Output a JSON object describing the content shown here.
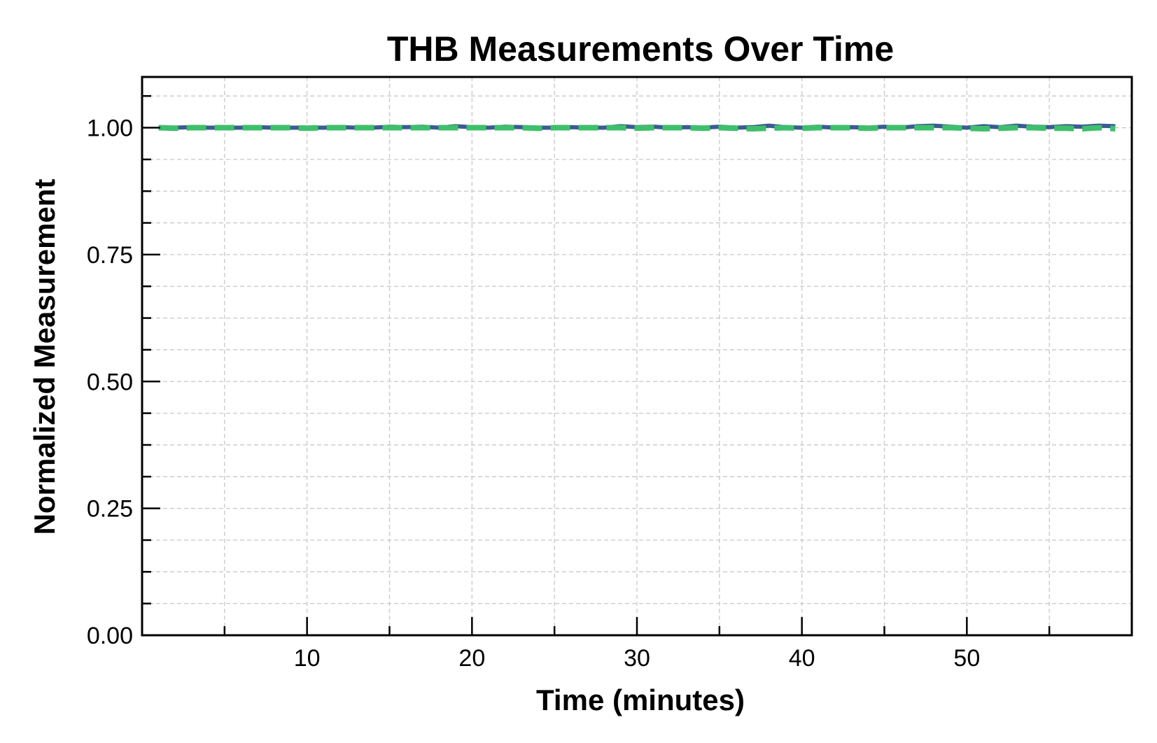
{
  "chart_data": {
    "type": "line",
    "title": "THB Measurements Over Time",
    "xlabel": "Time (minutes)",
    "ylabel": "Normalized Measurement",
    "xlim": [
      0,
      60
    ],
    "ylim": [
      0,
      1.1
    ],
    "x_ticks": [
      10,
      20,
      30,
      40,
      50
    ],
    "x_tick_labels": [
      "10",
      "20",
      "30",
      "40",
      "50"
    ],
    "y_ticks": [
      0,
      0.25,
      0.5,
      0.75,
      1.0
    ],
    "y_tick_labels": [
      "0.00",
      "0.25",
      "0.50",
      "0.75",
      "1.00"
    ],
    "x_minor_step": 5,
    "y_minor_step": 0.0625,
    "grid": true,
    "legend": "none",
    "x": [
      1,
      2,
      3,
      4,
      5,
      6,
      7,
      8,
      9,
      10,
      11,
      12,
      13,
      14,
      15,
      16,
      17,
      18,
      19,
      20,
      21,
      22,
      23,
      24,
      25,
      26,
      27,
      28,
      29,
      30,
      31,
      32,
      33,
      34,
      35,
      36,
      37,
      38,
      39,
      40,
      41,
      42,
      43,
      44,
      45,
      46,
      47,
      48,
      49,
      50,
      51,
      52,
      53,
      54,
      55,
      56,
      57,
      58,
      59
    ],
    "series": [
      {
        "color": "#3b5b92",
        "style": "solid",
        "values": [
          1.0,
          1.0,
          1.001,
          1.0,
          1.0,
          1.0,
          1.001,
          1.0,
          1.0,
          1.0,
          1.0,
          1.001,
          1.0,
          1.0,
          1.002,
          1.001,
          1.002,
          1.0,
          1.003,
          1.001,
          1.0,
          1.002,
          1.001,
          1.0,
          1.0,
          1.001,
          1.0,
          1.0,
          1.003,
          1.001,
          1.002,
          1.0,
          1.001,
          1.0,
          1.002,
          1.0,
          1.001,
          1.004,
          1.001,
          1.0,
          1.002,
          1.0,
          1.001,
          1.0,
          1.002,
          1.0,
          1.003,
          1.004,
          1.002,
          1.0,
          1.003,
          1.001,
          1.004,
          1.002,
          1.001,
          1.003,
          1.002,
          1.004,
          1.003
        ]
      },
      {
        "color": "#3fbf6b",
        "style": "dashed",
        "values": [
          1.0,
          0.999,
          1.0,
          1.0,
          1.0,
          1.0,
          1.0,
          1.0,
          1.0,
          0.999,
          1.0,
          1.0,
          1.0,
          1.0,
          1.0,
          1.0,
          1.0,
          1.0,
          1.0,
          1.0,
          1.0,
          1.0,
          1.0,
          0.999,
          1.0,
          1.0,
          1.0,
          1.0,
          1.0,
          0.999,
          1.0,
          1.0,
          1.0,
          0.999,
          1.0,
          0.999,
          0.998,
          0.999,
          1.0,
          0.999,
          1.0,
          1.0,
          1.0,
          0.999,
          1.0,
          1.0,
          1.0,
          1.0,
          1.0,
          0.999,
          0.998,
          0.999,
          1.0,
          1.0,
          0.999,
          0.999,
          0.998,
          1.0,
          0.998
        ]
      }
    ]
  }
}
